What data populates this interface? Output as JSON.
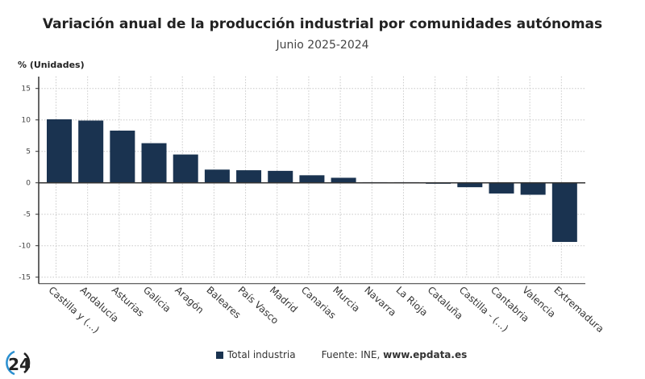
{
  "chart_data": {
    "type": "bar",
    "title": "Variación anual de la producción industrial por comunidades autónomas",
    "subtitle": "Junio 2025-2024",
    "ylabel": "% (Unidades)",
    "xlabel": "",
    "ylim": [
      -15,
      15
    ],
    "yticks": [
      15,
      10,
      5,
      0,
      -5,
      -10,
      -15
    ],
    "grid": true,
    "legend_position": "bottom",
    "categories": [
      "Castilla y (...)",
      "Andalucía",
      "Asturias",
      "Galicia",
      "Aragón",
      "Baleares",
      "País Vasco",
      "Madrid",
      "Canarias",
      "Murcia",
      "Navarra",
      "La Rioja",
      "Cataluña",
      "Castilla - (...)",
      "Cantabria",
      "Valencia",
      "Extremadura"
    ],
    "series": [
      {
        "name": "Total industria",
        "color": "#1a3350",
        "values": [
          10.1,
          9.9,
          8.3,
          6.3,
          4.5,
          2.1,
          2.0,
          1.9,
          1.2,
          0.8,
          0.1,
          0.1,
          -0.1,
          -0.7,
          -1.7,
          -1.9,
          -9.4
        ]
      }
    ]
  },
  "footer": {
    "source_prefix": "Fuente: INE, ",
    "source_site": "www.epdata.es",
    "logo_text": "24"
  }
}
